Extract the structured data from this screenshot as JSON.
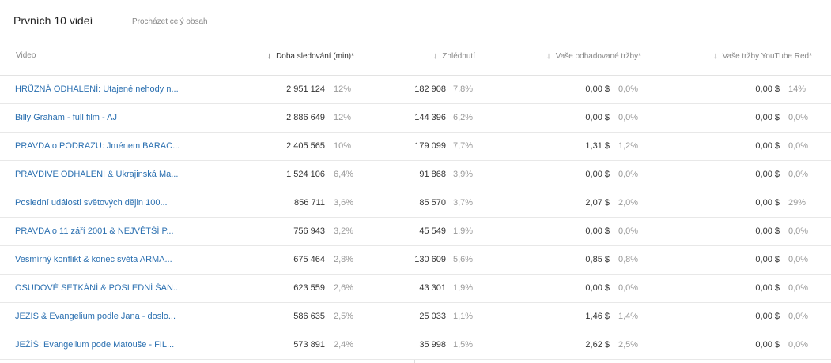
{
  "header": {
    "title": "Prvních 10 videí",
    "browse_link": "Procházet celý obsah"
  },
  "columns": {
    "video": "Video",
    "watch_time": "Doba sledování (min)*",
    "views": "Zhlédnutí",
    "revenue": "Vaše odhadované tržby*",
    "red_revenue": "Vaše tržby YouTube Red*",
    "sort_arrow": "↓"
  },
  "rows": [
    {
      "title": "HRŮZNÁ ODHALENÍ: Utajené nehody n...",
      "watch": "2 951 124",
      "watch_pct": "12%",
      "views": "182 908",
      "views_pct": "7,8%",
      "rev": "0,00 $",
      "rev_pct": "0,0%",
      "red": "0,00 $",
      "red_pct": "14%"
    },
    {
      "title": "Billy Graham - full film - AJ",
      "watch": "2 886 649",
      "watch_pct": "12%",
      "views": "144 396",
      "views_pct": "6,2%",
      "rev": "0,00 $",
      "rev_pct": "0,0%",
      "red": "0,00 $",
      "red_pct": "0,0%"
    },
    {
      "title": "PRAVDA o PODRAZU: Jménem BARAC...",
      "watch": "2 405 565",
      "watch_pct": "10%",
      "views": "179 099",
      "views_pct": "7,7%",
      "rev": "1,31 $",
      "rev_pct": "1,2%",
      "red": "0,00 $",
      "red_pct": "0,0%"
    },
    {
      "title": "PRAVDIVÉ ODHALENÍ & Ukrajinská Ma...",
      "watch": "1 524 106",
      "watch_pct": "6,4%",
      "views": "91 868",
      "views_pct": "3,9%",
      "rev": "0,00 $",
      "rev_pct": "0,0%",
      "red": "0,00 $",
      "red_pct": "0,0%"
    },
    {
      "title": "Poslední události světových dějin 100...",
      "watch": "856 711",
      "watch_pct": "3,6%",
      "views": "85 570",
      "views_pct": "3,7%",
      "rev": "2,07 $",
      "rev_pct": "2,0%",
      "red": "0,00 $",
      "red_pct": "29%"
    },
    {
      "title": "PRAVDA o 11 září 2001 & NEJVĚTŠÍ P...",
      "watch": "756 943",
      "watch_pct": "3,2%",
      "views": "45 549",
      "views_pct": "1,9%",
      "rev": "0,00 $",
      "rev_pct": "0,0%",
      "red": "0,00 $",
      "red_pct": "0,0%"
    },
    {
      "title": "Vesmírný konflikt & konec světa ARMA...",
      "watch": "675 464",
      "watch_pct": "2,8%",
      "views": "130 609",
      "views_pct": "5,6%",
      "rev": "0,85 $",
      "rev_pct": "0,8%",
      "red": "0,00 $",
      "red_pct": "0,0%"
    },
    {
      "title": "OSUDOVÉ SETKÁNÍ & POSLEDNÍ ŠAN...",
      "watch": "623 559",
      "watch_pct": "2,6%",
      "views": "43 301",
      "views_pct": "1,9%",
      "rev": "0,00 $",
      "rev_pct": "0,0%",
      "red": "0,00 $",
      "red_pct": "0,0%"
    },
    {
      "title": "JEŽÍŠ & Evangelium podle Jana - doslo...",
      "watch": "586 635",
      "watch_pct": "2,5%",
      "views": "25 033",
      "views_pct": "1,1%",
      "rev": "1,46 $",
      "rev_pct": "1,4%",
      "red": "0,00 $",
      "red_pct": "0,0%"
    },
    {
      "title": "JEŽÍŠ: Evangelium pode Matouše - FIL...",
      "watch": "573 891",
      "watch_pct": "2,4%",
      "views": "35 998",
      "views_pct": "1,5%",
      "rev": "2,62 $",
      "rev_pct": "2,5%",
      "red": "0,00 $",
      "red_pct": "0,0%"
    }
  ]
}
